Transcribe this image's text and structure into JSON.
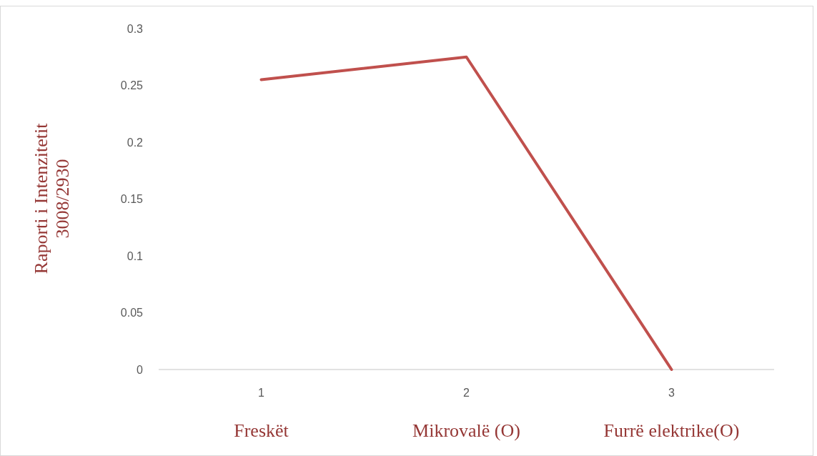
{
  "chart_data": {
    "type": "line",
    "ylabel": "Raporti i Intenzitetit\n3008/2930",
    "categories": [
      "1",
      "2",
      "3"
    ],
    "series": [
      {
        "color": "#c0504d",
        "values": [
          0.255,
          0.275,
          0
        ]
      }
    ],
    "ylim": [
      0,
      0.3
    ],
    "yticks": [
      0,
      0.05,
      0.1,
      0.15,
      0.2,
      0.25,
      0.3
    ],
    "grid": false,
    "marker": "none",
    "annotations": [
      "Freskët",
      "Mikrovalë (O)",
      "Furrë elektrike(O)"
    ]
  }
}
